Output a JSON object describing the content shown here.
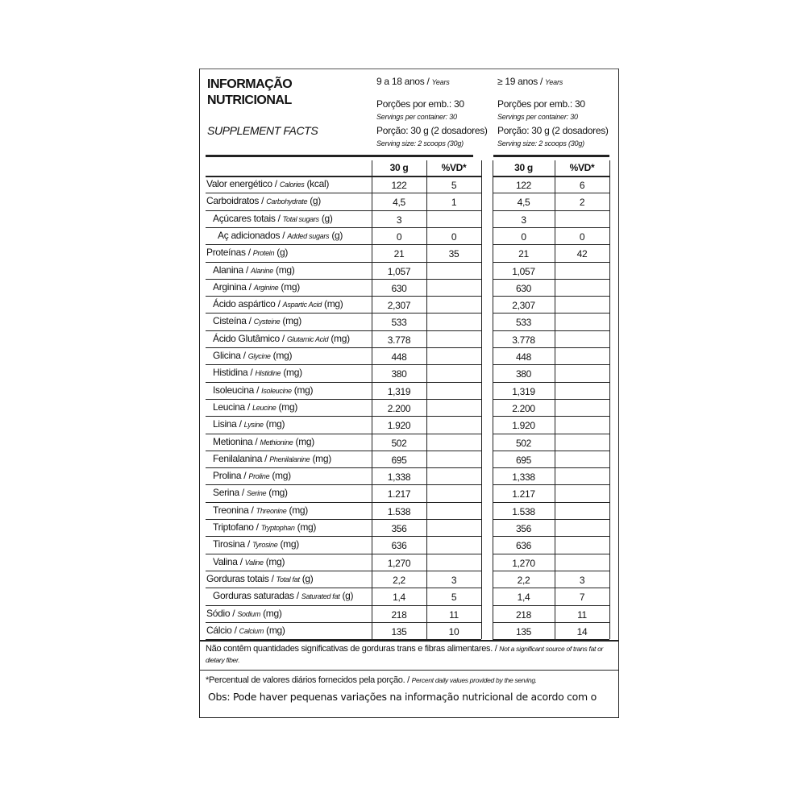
{
  "header": {
    "title_line1": "INFORMAÇÃO",
    "title_line2": "NUTRICIONAL",
    "subtitle": "SUPPLEMENT FACTS",
    "groups": [
      {
        "age": "9 a 18 anos /",
        "age_en": "Years",
        "servings": "Porções por emb.: 30",
        "servings_en": "Servings per container: 30",
        "portion": "Porção: 30 g (2 dosadores)",
        "portion_en": "Serving size: 2 scoops (30g)"
      },
      {
        "age": "≥ 19 anos /",
        "age_en": "Years",
        "servings": "Porções por emb.: 30",
        "servings_en": "Servings per container: 30",
        "portion": "Porção: 30 g (2 dosadores)",
        "portion_en": "Serving size: 2 scoops (30g)"
      }
    ]
  },
  "table": {
    "columns": [
      "30 g",
      "%VD*",
      "30 g",
      "%VD*"
    ],
    "rows": [
      {
        "pt": "Valor energético /",
        "en": "Calories",
        "unit": "(kcal)",
        "level": 0,
        "cells": [
          "122",
          "5",
          "122",
          "6"
        ]
      },
      {
        "pt": "Carboidratos /",
        "en": "Carbohydrate",
        "unit": "(g)",
        "level": 0,
        "cells": [
          "4,5",
          "1",
          "4,5",
          "2"
        ]
      },
      {
        "pt": "Açúcares totais /",
        "en": "Total sugars",
        "unit": "(g)",
        "level": 1,
        "cells": [
          "3",
          null,
          "3",
          null
        ]
      },
      {
        "pt": "Aç adicionados /",
        "en": "Added sugars",
        "unit": "(g)",
        "level": 2,
        "cells": [
          "0",
          "0",
          "0",
          "0"
        ]
      },
      {
        "pt": "Proteínas /",
        "en": "Protein",
        "unit": "(g)",
        "level": 0,
        "cells": [
          "21",
          "35",
          "21",
          "42"
        ]
      },
      {
        "pt": "Alanina /",
        "en": "Alanine",
        "unit": "(mg)",
        "level": 1,
        "cells": [
          "1,057",
          null,
          "1,057",
          null
        ]
      },
      {
        "pt": "Arginina /",
        "en": "Arginine",
        "unit": "(mg)",
        "level": 1,
        "cells": [
          "630",
          null,
          "630",
          null
        ]
      },
      {
        "pt": "Ácido aspártico /",
        "en": "Aspartic Acid",
        "unit": "(mg)",
        "level": 1,
        "cells": [
          "2,307",
          null,
          "2,307",
          null
        ]
      },
      {
        "pt": "Cisteína /",
        "en": "Cysteine",
        "unit": "(mg)",
        "level": 1,
        "cells": [
          "533",
          null,
          "533",
          null
        ]
      },
      {
        "pt": "Ácido Glutâmico /",
        "en": "Glutamic Acid",
        "unit": "(mg)",
        "level": 1,
        "cells": [
          "3.778",
          null,
          "3.778",
          null
        ]
      },
      {
        "pt": "Glicina /",
        "en": "Glycine",
        "unit": "(mg)",
        "level": 1,
        "cells": [
          "448",
          null,
          "448",
          null
        ]
      },
      {
        "pt": "Histidina /",
        "en": "Histidine",
        "unit": "(mg)",
        "level": 1,
        "cells": [
          "380",
          null,
          "380",
          null
        ]
      },
      {
        "pt": "Isoleucina /",
        "en": "Isoleucine",
        "unit": "(mg)",
        "level": 1,
        "cells": [
          "1,319",
          null,
          "1,319",
          null
        ]
      },
      {
        "pt": "Leucina /",
        "en": "Leucine",
        "unit": "(mg)",
        "level": 1,
        "cells": [
          "2.200",
          null,
          "2.200",
          null
        ]
      },
      {
        "pt": "Lisina /",
        "en": "Lysine",
        "unit": "(mg)",
        "level": 1,
        "cells": [
          "1.920",
          null,
          "1.920",
          null
        ]
      },
      {
        "pt": "Metionina /",
        "en": "Methionine",
        "unit": "(mg)",
        "level": 1,
        "cells": [
          "502",
          null,
          "502",
          null
        ]
      },
      {
        "pt": "Fenilalanina /",
        "en": "Phenilalanine",
        "unit": "(mg)",
        "level": 1,
        "cells": [
          "695",
          null,
          "695",
          null
        ]
      },
      {
        "pt": "Prolina /",
        "en": "Proline",
        "unit": "(mg)",
        "level": 1,
        "cells": [
          "1,338",
          null,
          "1,338",
          null
        ]
      },
      {
        "pt": "Serina /",
        "en": "Serine",
        "unit": "(mg)",
        "level": 1,
        "cells": [
          "1.217",
          null,
          "1.217",
          null
        ]
      },
      {
        "pt": "Treonina /",
        "en": "Threonine",
        "unit": "(mg)",
        "level": 1,
        "cells": [
          "1.538",
          null,
          "1.538",
          null
        ]
      },
      {
        "pt": "Triptofano /",
        "en": "Tryptophan",
        "unit": "(mg)",
        "level": 1,
        "cells": [
          "356",
          null,
          "356",
          null
        ]
      },
      {
        "pt": "Tirosina /",
        "en": "Tyrosine",
        "unit": "(mg)",
        "level": 1,
        "cells": [
          "636",
          null,
          "636",
          null
        ]
      },
      {
        "pt": "Valina /",
        "en": "Valine",
        "unit": "(mg)",
        "level": 1,
        "cells": [
          "1,270",
          null,
          "1,270",
          null
        ]
      },
      {
        "pt": "Gorduras totais /",
        "en": "Total fat",
        "unit": "(g)",
        "level": 0,
        "cells": [
          "2,2",
          "3",
          "2,2",
          "3"
        ]
      },
      {
        "pt": "Gorduras saturadas /",
        "en": "Saturated fat",
        "unit": "(g)",
        "level": 1,
        "cells": [
          "1,4",
          "5",
          "1,4",
          "7"
        ]
      },
      {
        "pt": "Sódio /",
        "en": "Sodium",
        "unit": "(mg)",
        "level": 0,
        "cells": [
          "218",
          "11",
          "218",
          "11"
        ]
      },
      {
        "pt": "Cálcio /",
        "en": "Calcium",
        "unit": "(mg)",
        "level": 0,
        "cells": [
          "135",
          "10",
          "135",
          "14"
        ]
      }
    ]
  },
  "footnotes": [
    {
      "pt": "Não contêm quantidades significativas de gorduras trans e fibras alimentares. /",
      "en": "Not a significant source of trans fat or dietary fiber."
    },
    {
      "pt": "*Percentual de valores diários fornecidos pela porção. /",
      "en": "Percent daily values provided by the serving."
    }
  ],
  "obs": "Obs: Pode haver pequenas variações na informação nutricional de acordo com o"
}
